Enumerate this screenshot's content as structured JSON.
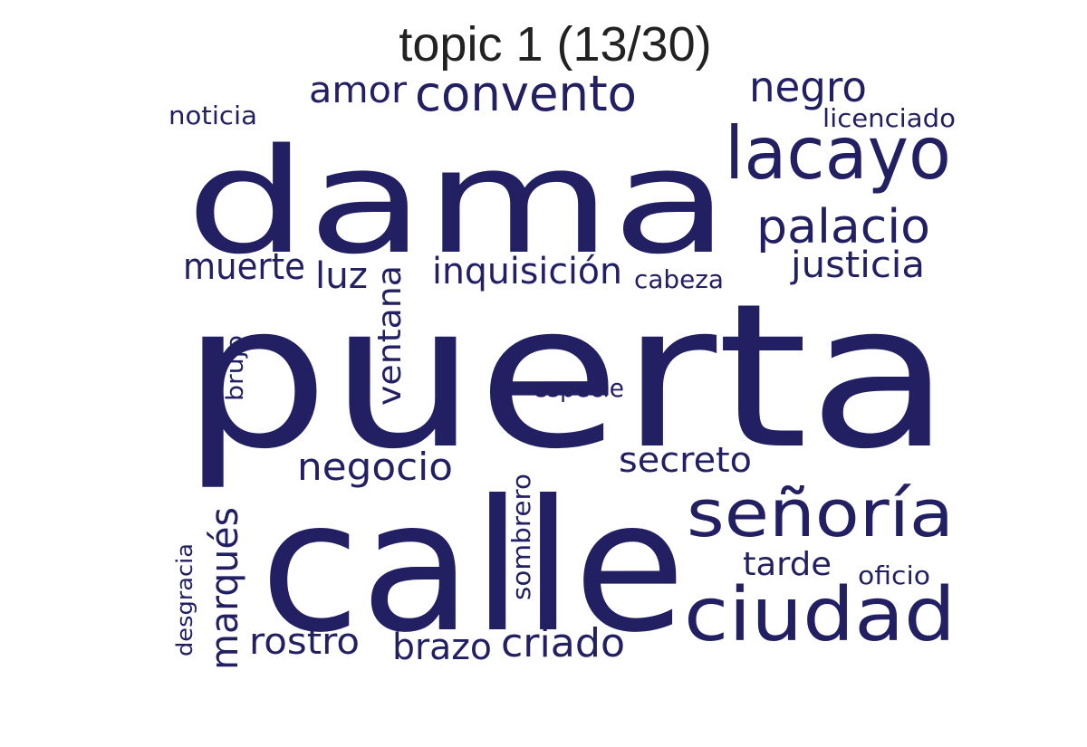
{
  "title": "topic 1 (13/30)",
  "word_color": "#221f63",
  "title_color": "#222222",
  "words": [
    {
      "text": "puerta"
    },
    {
      "text": "dama"
    },
    {
      "text": "calle"
    },
    {
      "text": "lacayo"
    },
    {
      "text": "señoría"
    },
    {
      "text": "ciudad"
    },
    {
      "text": "convento"
    },
    {
      "text": "palacio"
    },
    {
      "text": "negro"
    },
    {
      "text": "inquisición"
    },
    {
      "text": "justicia"
    },
    {
      "text": "muerte"
    },
    {
      "text": "luz"
    },
    {
      "text": "ventana"
    },
    {
      "text": "amor"
    },
    {
      "text": "secreto"
    },
    {
      "text": "negocio"
    },
    {
      "text": "marqués"
    },
    {
      "text": "criado"
    },
    {
      "text": "rostro"
    },
    {
      "text": "brazo"
    },
    {
      "text": "tarde"
    },
    {
      "text": "sombrero"
    },
    {
      "text": "licenciado"
    },
    {
      "text": "noticia"
    },
    {
      "text": "cabeza"
    },
    {
      "text": "especie"
    },
    {
      "text": "brujo"
    },
    {
      "text": "oficio"
    },
    {
      "text": "desgracia"
    }
  ]
}
